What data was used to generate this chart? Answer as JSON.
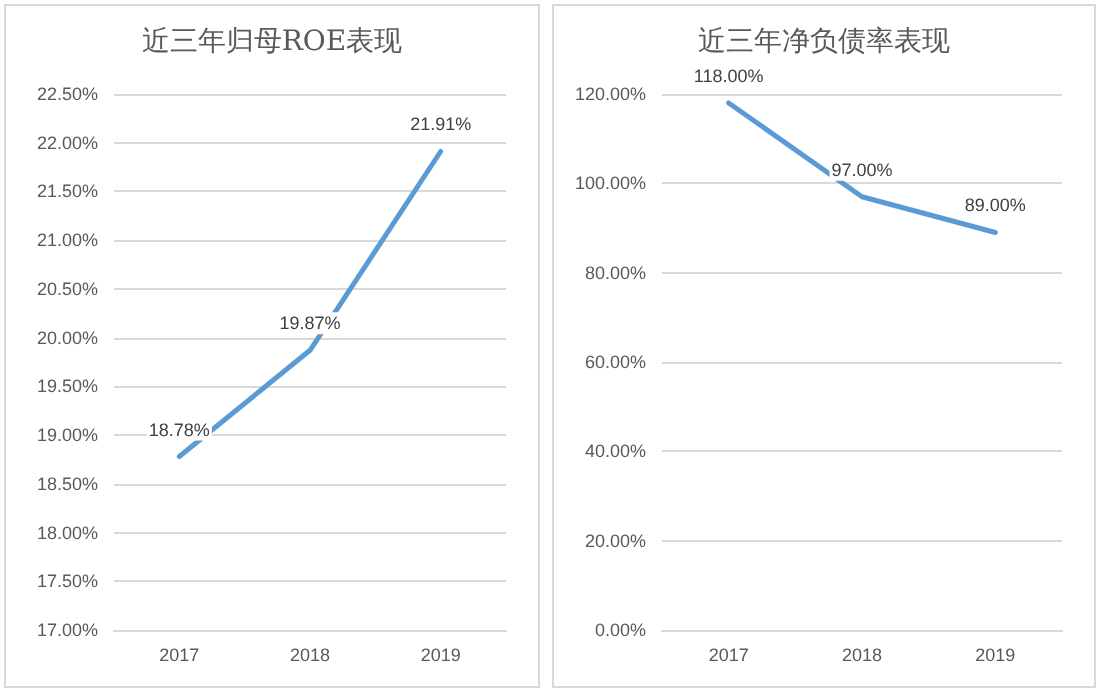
{
  "chart_data": [
    {
      "type": "line",
      "title": "近三年归母ROE表现",
      "categories": [
        "2017",
        "2018",
        "2019"
      ],
      "series": [
        {
          "color": "#5b9bd5",
          "values": [
            18.78,
            19.87,
            21.91
          ],
          "value_labels": [
            "18.78%",
            "19.87%",
            "21.91%"
          ]
        }
      ],
      "ylim": [
        17,
        22.5
      ],
      "yticks": [
        {
          "value": 17,
          "label": "17.00%"
        },
        {
          "value": 17.5,
          "label": "17.50%"
        },
        {
          "value": 18,
          "label": "18.00%"
        },
        {
          "value": 18.5,
          "label": "18.50%"
        },
        {
          "value": 19,
          "label": "19.00%"
        },
        {
          "value": 19.5,
          "label": "19.50%"
        },
        {
          "value": 20,
          "label": "20.00%"
        },
        {
          "value": 20.5,
          "label": "20.50%"
        },
        {
          "value": 21,
          "label": "21.00%"
        },
        {
          "value": 21.5,
          "label": "21.50%"
        },
        {
          "value": 22,
          "label": "22.00%"
        },
        {
          "value": 22.5,
          "label": "22.50%"
        }
      ],
      "grid": "y",
      "marker": "none",
      "line_style": "solid"
    },
    {
      "type": "line",
      "title": "近三年净负债率表现",
      "categories": [
        "2017",
        "2018",
        "2019"
      ],
      "series": [
        {
          "color": "#5b9bd5",
          "values": [
            118,
            97,
            89
          ],
          "value_labels": [
            "118.00%",
            "97.00%",
            "89.00%"
          ]
        }
      ],
      "ylim": [
        0,
        120
      ],
      "yticks": [
        {
          "value": 0,
          "label": "0.00%"
        },
        {
          "value": 20,
          "label": "20.00%"
        },
        {
          "value": 40,
          "label": "40.00%"
        },
        {
          "value": 60,
          "label": "60.00%"
        },
        {
          "value": 80,
          "label": "80.00%"
        },
        {
          "value": 100,
          "label": "100.00%"
        },
        {
          "value": 120,
          "label": "120.00%"
        }
      ],
      "grid": "y",
      "marker": "none",
      "line_style": "solid"
    }
  ]
}
